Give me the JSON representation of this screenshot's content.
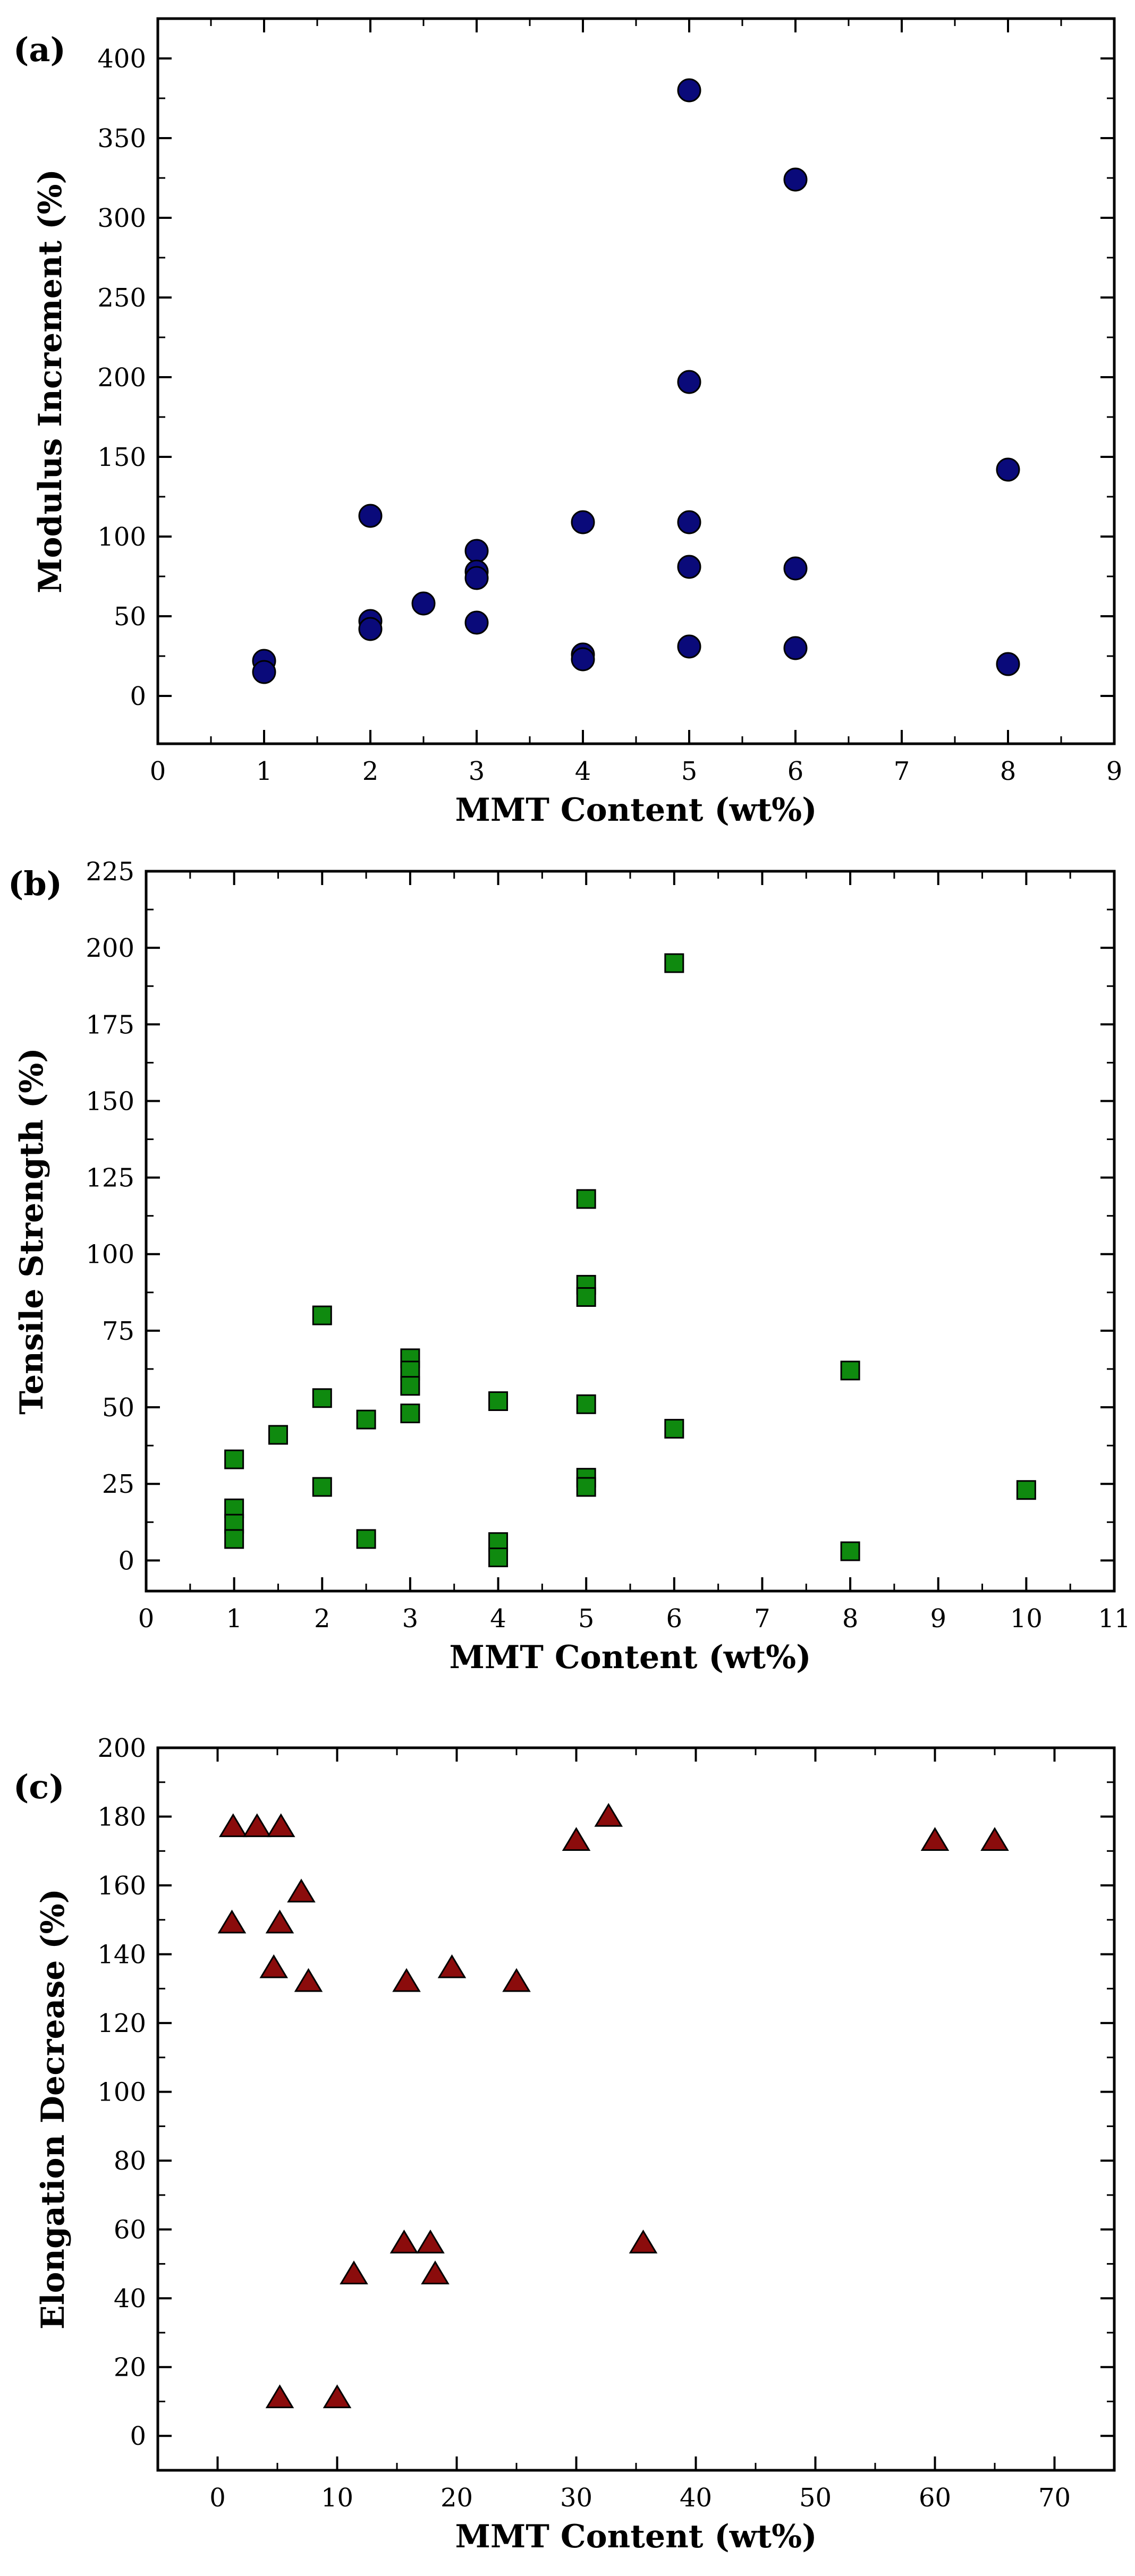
{
  "chart_data": [
    {
      "panel_label": "(a)",
      "type": "scatter",
      "xlabel": "MMT Content (wt%)",
      "ylabel": "Modulus Increment (%)",
      "xlim": [
        0,
        9
      ],
      "ylim": [
        -30,
        425
      ],
      "xticks": [
        0,
        1,
        2,
        3,
        4,
        5,
        6,
        7,
        8,
        9
      ],
      "yticks": [
        0,
        50,
        100,
        150,
        200,
        250,
        300,
        350,
        400
      ],
      "marker": "circle",
      "color": "#0a0a7a",
      "points": [
        [
          1,
          22
        ],
        [
          1,
          15
        ],
        [
          2,
          113
        ],
        [
          2,
          47
        ],
        [
          2,
          42
        ],
        [
          2.5,
          58
        ],
        [
          3,
          91
        ],
        [
          3,
          78
        ],
        [
          3,
          74
        ],
        [
          3,
          46
        ],
        [
          4,
          109
        ],
        [
          4,
          26
        ],
        [
          4,
          23
        ],
        [
          5,
          380
        ],
        [
          5,
          197
        ],
        [
          5,
          109
        ],
        [
          5,
          81
        ],
        [
          5,
          31
        ],
        [
          6,
          324
        ],
        [
          6,
          80
        ],
        [
          6,
          30
        ],
        [
          8,
          142
        ],
        [
          8,
          20
        ]
      ]
    },
    {
      "panel_label": "(b)",
      "type": "scatter",
      "xlabel": "MMT Content (wt%)",
      "ylabel": "Tensile Strength (%)",
      "xlim": [
        0,
        11
      ],
      "ylim": [
        -10,
        225
      ],
      "xticks": [
        0,
        1,
        2,
        3,
        4,
        5,
        6,
        7,
        8,
        9,
        10,
        11
      ],
      "yticks": [
        0,
        25,
        50,
        75,
        100,
        125,
        150,
        175,
        200,
        225
      ],
      "marker": "square",
      "color": "#0f8a0f",
      "points": [
        [
          1,
          33
        ],
        [
          1,
          17
        ],
        [
          1,
          12
        ],
        [
          1,
          7
        ],
        [
          1.5,
          41
        ],
        [
          2,
          80
        ],
        [
          2,
          53
        ],
        [
          2,
          24
        ],
        [
          2.5,
          46
        ],
        [
          2.5,
          7
        ],
        [
          3,
          66
        ],
        [
          3,
          62
        ],
        [
          3,
          57
        ],
        [
          3,
          48
        ],
        [
          4,
          52
        ],
        [
          4,
          6
        ],
        [
          4,
          1
        ],
        [
          5,
          118
        ],
        [
          5,
          90
        ],
        [
          5,
          86
        ],
        [
          5,
          51
        ],
        [
          5,
          27
        ],
        [
          5,
          24
        ],
        [
          6,
          195
        ],
        [
          6,
          43
        ],
        [
          8,
          62
        ],
        [
          8,
          3
        ],
        [
          10,
          23
        ]
      ]
    },
    {
      "panel_label": "(c)",
      "type": "scatter",
      "xlabel": "MMT Content (wt%)",
      "ylabel": "Elongation Decrease (%)",
      "xlim": [
        -5,
        75
      ],
      "ylim": [
        -10,
        200
      ],
      "xticks": [
        0,
        10,
        20,
        30,
        40,
        50,
        60,
        70
      ],
      "yticks": [
        0,
        20,
        40,
        60,
        80,
        100,
        120,
        140,
        160,
        180,
        200
      ],
      "marker": "triangle",
      "color": "#8b0c0c",
      "points": [
        [
          1.3,
          177
        ],
        [
          3.3,
          177
        ],
        [
          5.3,
          177
        ],
        [
          1.2,
          149
        ],
        [
          5.2,
          149
        ],
        [
          7,
          158
        ],
        [
          4.7,
          136
        ],
        [
          7.6,
          132
        ],
        [
          15.8,
          132
        ],
        [
          19.6,
          136
        ],
        [
          25,
          132
        ],
        [
          30,
          173
        ],
        [
          32.7,
          180
        ],
        [
          60,
          173
        ],
        [
          65,
          173
        ],
        [
          15.6,
          56
        ],
        [
          17.8,
          56
        ],
        [
          35.6,
          56
        ],
        [
          11.4,
          47
        ],
        [
          18.2,
          47
        ],
        [
          5.2,
          11
        ],
        [
          10,
          11
        ]
      ]
    }
  ]
}
